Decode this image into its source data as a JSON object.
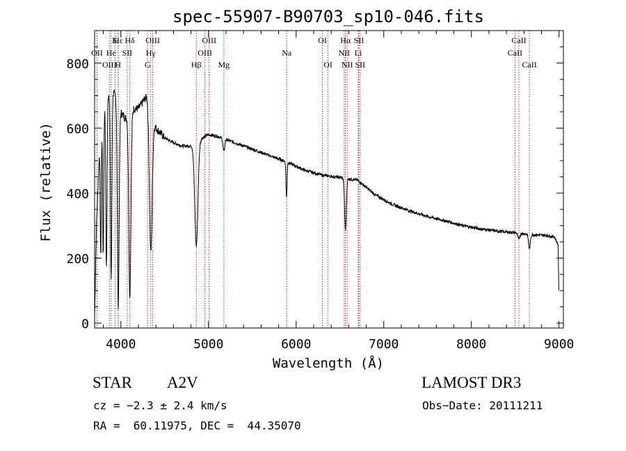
{
  "chart_data": {
    "type": "line",
    "title": "spec-55907-B90703_sp10-046.fits",
    "xlabel": "Wavelength (Å)",
    "ylabel": "Flux (relative)",
    "xlim": [
      3700,
      9050
    ],
    "ylim": [
      -15,
      900
    ],
    "xticks": [
      4000,
      5000,
      6000,
      7000,
      8000,
      9000
    ],
    "yticks": [
      0,
      200,
      400,
      600,
      800
    ],
    "x_minor_step": 200,
    "y_minor_step": 50,
    "line_color": "#000000",
    "marker_color": "#b03030",
    "continuum": [
      [
        3700,
        20
      ],
      [
        3720,
        290
      ],
      [
        3760,
        560
      ],
      [
        3800,
        650
      ],
      [
        3850,
        700
      ],
      [
        3900,
        720
      ],
      [
        3950,
        690
      ],
      [
        4000,
        650
      ],
      [
        4050,
        630
      ],
      [
        4100,
        640
      ],
      [
        4150,
        660
      ],
      [
        4200,
        660
      ],
      [
        4250,
        680
      ],
      [
        4300,
        700
      ],
      [
        4350,
        640
      ],
      [
        4400,
        600
      ],
      [
        4500,
        570
      ],
      [
        4600,
        555
      ],
      [
        4700,
        545
      ],
      [
        4800,
        545
      ],
      [
        4900,
        565
      ],
      [
        5000,
        580
      ],
      [
        5100,
        575
      ],
      [
        5300,
        555
      ],
      [
        5500,
        535
      ],
      [
        5700,
        515
      ],
      [
        5900,
        495
      ],
      [
        6100,
        470
      ],
      [
        6300,
        455
      ],
      [
        6500,
        448
      ],
      [
        6700,
        440
      ],
      [
        6900,
        395
      ],
      [
        7100,
        365
      ],
      [
        7300,
        345
      ],
      [
        7500,
        328
      ],
      [
        7700,
        315
      ],
      [
        7900,
        300
      ],
      [
        8100,
        290
      ],
      [
        8300,
        283
      ],
      [
        8500,
        278
      ],
      [
        8700,
        272
      ],
      [
        8850,
        270
      ],
      [
        8950,
        265
      ],
      [
        8990,
        240
      ],
      [
        9000,
        60
      ]
    ],
    "absorption_lines": [
      [
        3770,
        380,
        6
      ],
      [
        3798,
        440,
        6
      ],
      [
        3835,
        520,
        7
      ],
      [
        3889,
        580,
        8
      ],
      [
        3970,
        620,
        10
      ],
      [
        4102,
        560,
        12
      ],
      [
        4341,
        430,
        16
      ],
      [
        4861,
        320,
        18
      ],
      [
        5175,
        40,
        10
      ],
      [
        5890,
        110,
        6
      ],
      [
        6563,
        160,
        10
      ],
      [
        8542,
        20,
        10
      ],
      [
        8662,
        45,
        10
      ]
    ],
    "noise_seed": 7,
    "noise_amplitude": 10,
    "spectral_lines": [
      {
        "label": "Hε",
        "wavelength": 3970,
        "row": 0
      },
      {
        "label": "K",
        "wavelength": 3934,
        "row": 0
      },
      {
        "label": "Hδ",
        "wavelength": 4102,
        "row": 0
      },
      {
        "label": "OIII",
        "wavelength": 4363,
        "row": 0
      },
      {
        "label": "OIII",
        "wavelength": 5007,
        "row": 0
      },
      {
        "label": "OI",
        "wavelength": 6300,
        "row": 0
      },
      {
        "label": "Hα",
        "wavelength": 6563,
        "row": 0
      },
      {
        "label": "SII",
        "wavelength": 6716,
        "row": 0
      },
      {
        "label": "CaII",
        "wavelength": 8542,
        "row": 0
      },
      {
        "label": "OII",
        "wavelength": 3727,
        "row": 1
      },
      {
        "label": "He",
        "wavelength": 3889,
        "row": 1
      },
      {
        "label": "SII",
        "wavelength": 4072,
        "row": 1
      },
      {
        "label": "Hγ",
        "wavelength": 4341,
        "row": 1
      },
      {
        "label": "OIII",
        "wavelength": 4959,
        "row": 1
      },
      {
        "label": "Na",
        "wavelength": 5893,
        "row": 1
      },
      {
        "label": "NII",
        "wavelength": 6548,
        "row": 1
      },
      {
        "label": "Li",
        "wavelength": 6708,
        "row": 1
      },
      {
        "label": "CaII",
        "wavelength": 8498,
        "row": 1
      },
      {
        "label": "OIII",
        "wavelength": 3869,
        "row": 2
      },
      {
        "label": "H",
        "wavelength": 3968,
        "row": 2
      },
      {
        "label": "G",
        "wavelength": 4305,
        "row": 2
      },
      {
        "label": "Hβ",
        "wavelength": 4861,
        "row": 2
      },
      {
        "label": "Mg",
        "wavelength": 5175,
        "row": 2
      },
      {
        "label": "OI",
        "wavelength": 6364,
        "row": 2
      },
      {
        "label": "NII",
        "wavelength": 6583,
        "row": 2
      },
      {
        "label": "SII",
        "wavelength": 6731,
        "row": 2
      },
      {
        "label": "CaII",
        "wavelength": 8662,
        "row": 2
      }
    ]
  },
  "info": {
    "class": "STAR",
    "subclass": "A2V",
    "survey": "LAMOST DR3",
    "redshift": "cz = −2.3 ± 2.4 km/s",
    "obs_date": "Obs−Date: 20111211",
    "coords": "RA =  60.11975, DEC =  44.35070"
  }
}
